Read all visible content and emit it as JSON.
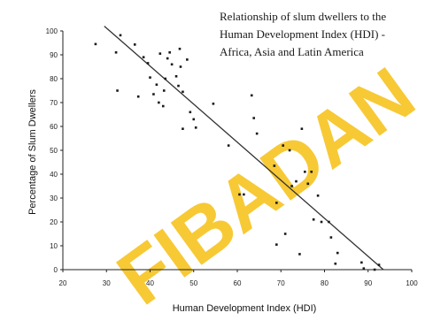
{
  "chart_data": {
    "type": "scatter",
    "title_lines": [
      "Relationship of slum dwellers to the",
      "Human Development Index (HDI) -",
      "Africa, Asia and Latin America"
    ],
    "xlabel": "Human Development Index (HDI)",
    "ylabel": "Percentage of Slum Dwellers",
    "xlim": [
      20,
      100
    ],
    "ylim": [
      0,
      100
    ],
    "x_ticks": [
      20,
      30,
      40,
      50,
      60,
      70,
      80,
      90,
      100
    ],
    "y_ticks": [
      0,
      10,
      20,
      30,
      40,
      50,
      60,
      70,
      80,
      90,
      100
    ],
    "grid": false,
    "series": [
      {
        "points": [
          [
            27.5,
            94.5
          ],
          [
            32.2,
            91
          ],
          [
            32.5,
            75
          ],
          [
            33.2,
            98.2
          ],
          [
            36.5,
            94.3
          ],
          [
            37.3,
            72.5
          ],
          [
            38.5,
            89
          ],
          [
            39.5,
            86.5
          ],
          [
            40,
            80.5
          ],
          [
            40.8,
            73.5
          ],
          [
            41.5,
            77.5
          ],
          [
            42,
            70
          ],
          [
            42.3,
            90.5
          ],
          [
            43,
            68.5
          ],
          [
            43.5,
            80
          ],
          [
            43.2,
            75
          ],
          [
            44,
            88.5
          ],
          [
            44.5,
            91
          ],
          [
            45,
            86
          ],
          [
            46,
            81
          ],
          [
            46.5,
            77
          ],
          [
            46.8,
            92.5
          ],
          [
            47,
            85
          ],
          [
            47.5,
            74.5
          ],
          [
            47.5,
            59
          ],
          [
            48.5,
            88
          ],
          [
            49.2,
            66
          ],
          [
            50,
            63
          ],
          [
            50.5,
            59.5
          ],
          [
            54.5,
            69.5
          ],
          [
            58,
            52
          ],
          [
            60.5,
            31.5
          ],
          [
            61.5,
            31.5
          ],
          [
            63.3,
            73
          ],
          [
            63.8,
            63.5
          ],
          [
            64.5,
            57
          ],
          [
            68.5,
            43.5
          ],
          [
            69,
            28
          ],
          [
            69,
            10.5
          ],
          [
            70.5,
            52
          ],
          [
            71,
            15
          ],
          [
            72.5,
            35
          ],
          [
            72,
            50
          ],
          [
            73.5,
            37
          ],
          [
            74.3,
            6.5
          ],
          [
            74.8,
            59
          ],
          [
            75.5,
            41
          ],
          [
            76.2,
            36
          ],
          [
            77,
            41
          ],
          [
            77.5,
            21
          ],
          [
            78.5,
            31
          ],
          [
            79.3,
            20
          ],
          [
            81,
            20
          ],
          [
            81.5,
            13.5
          ],
          [
            82.5,
            2.5
          ],
          [
            83,
            7
          ],
          [
            88.5,
            3
          ],
          [
            89,
            0.5
          ],
          [
            91.5,
            0
          ],
          [
            92.5,
            2
          ]
        ]
      }
    ],
    "trend_line": {
      "x": [
        29.5,
        93.5
      ],
      "y": [
        102,
        0
      ]
    }
  },
  "watermark": "FIBADAN",
  "colors": {
    "points": "#1a1a1a",
    "trend": "#333333",
    "watermark": "#f6c21a"
  }
}
